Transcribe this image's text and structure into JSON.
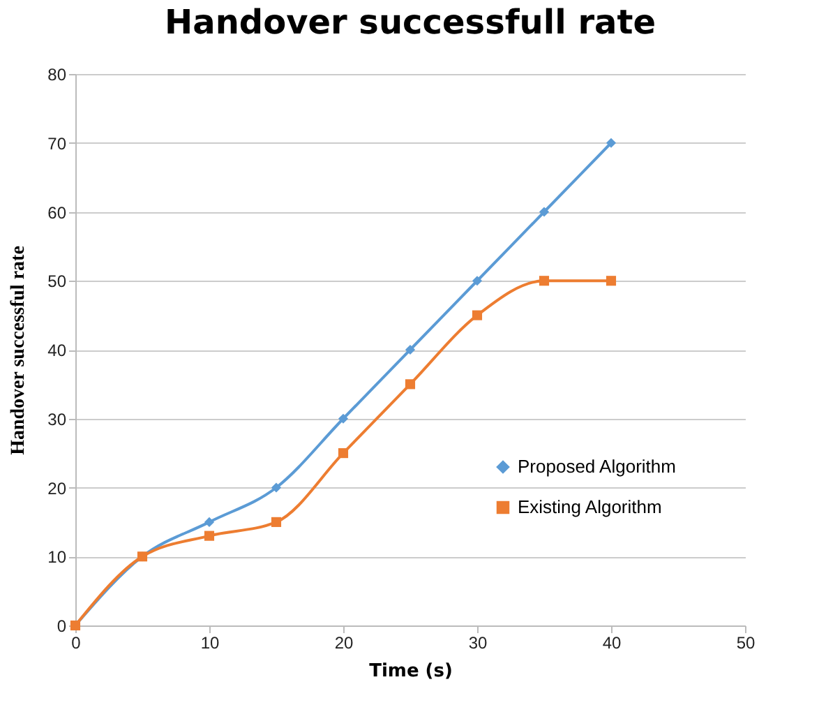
{
  "chart_data": {
    "type": "line",
    "title": "Handover successfull rate",
    "xlabel": "Time (s)",
    "ylabel": "Handover  successful rate",
    "x": [
      0,
      5,
      10,
      15,
      20,
      25,
      30,
      35,
      40
    ],
    "series": [
      {
        "name": "Proposed Algorithm",
        "color": "#5b9bd5",
        "marker": "diamond",
        "values": [
          0,
          10,
          15,
          20,
          30,
          40,
          50,
          60,
          70
        ]
      },
      {
        "name": "Existing Algorithm",
        "color": "#ed7d31",
        "marker": "square",
        "values": [
          0,
          10,
          13,
          15,
          25,
          35,
          45,
          50,
          50
        ]
      }
    ],
    "xlim": [
      0,
      50
    ],
    "xticks": [
      0,
      10,
      20,
      30,
      40,
      50
    ],
    "ylim": [
      0,
      80
    ],
    "yticks": [
      0,
      10,
      20,
      30,
      40,
      50,
      60,
      70,
      80
    ],
    "grid": "y",
    "legend": "right",
    "line_style": "solid"
  }
}
